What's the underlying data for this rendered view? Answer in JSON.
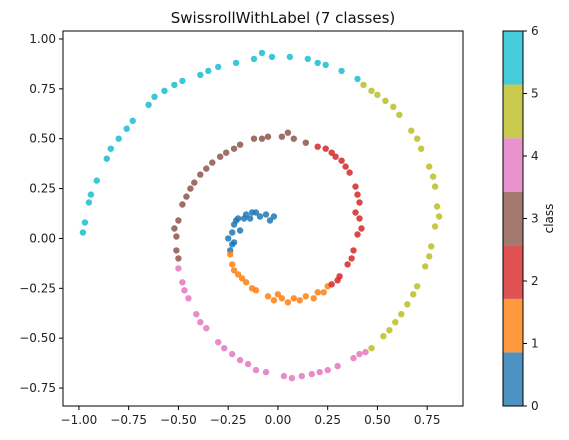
{
  "chart_data": {
    "type": "scatter",
    "title": "SwissrollWithLabel (7 classes)",
    "xlabel": "",
    "ylabel": "",
    "xlim": [
      -1.08,
      0.93
    ],
    "ylim": [
      -0.84,
      1.04
    ],
    "x_ticks": [
      -1.0,
      -0.75,
      -0.5,
      -0.25,
      0.0,
      0.25,
      0.5,
      0.75
    ],
    "x_tick_labels": [
      "−1.00",
      "−0.75",
      "−0.50",
      "−0.25",
      "0.00",
      "0.25",
      "0.50",
      "0.75"
    ],
    "y_ticks": [
      1.0,
      0.75,
      0.5,
      0.25,
      0.0,
      -0.25,
      -0.5,
      -0.75
    ],
    "y_tick_labels": [
      "1.00",
      "0.75",
      "0.50",
      "0.25",
      "0.00",
      "−0.25",
      "−0.50",
      "−0.75"
    ],
    "grid": false,
    "colorbar": {
      "label": "class",
      "ticks": [
        "0",
        "1",
        "2",
        "3",
        "4",
        "5",
        "6"
      ],
      "colors": [
        "#1f77b4",
        "#ff7f0e",
        "#d62728",
        "#8c564b",
        "#e377c2",
        "#bcbd22",
        "#17becf"
      ]
    },
    "series": [
      {
        "class": 0,
        "color": "#1f77b4",
        "points": [
          [
            -0.22,
            -0.02
          ],
          [
            -0.23,
            0.03
          ],
          [
            -0.22,
            0.07
          ],
          [
            -0.2,
            0.1
          ],
          [
            -0.16,
            0.12
          ],
          [
            -0.11,
            0.13
          ],
          [
            -0.06,
            0.12
          ],
          [
            -0.02,
            0.11
          ],
          [
            -0.24,
            -0.06
          ],
          [
            -0.21,
            0.09
          ],
          [
            -0.14,
            0.1
          ],
          [
            -0.09,
            0.11
          ],
          [
            -0.19,
            0.04
          ],
          [
            -0.13,
            0.13
          ],
          [
            -0.04,
            0.09
          ],
          [
            -0.17,
            0.1
          ],
          [
            -0.25,
            0.0
          ],
          [
            -0.23,
            -0.03
          ]
        ]
      },
      {
        "class": 1,
        "color": "#ff7f0e",
        "points": [
          [
            -0.24,
            -0.08
          ],
          [
            -0.23,
            -0.13
          ],
          [
            -0.2,
            -0.18
          ],
          [
            -0.16,
            -0.22
          ],
          [
            -0.11,
            -0.26
          ],
          [
            -0.05,
            -0.29
          ],
          [
            0.02,
            -0.3
          ],
          [
            0.08,
            -0.3
          ],
          [
            0.14,
            -0.29
          ],
          [
            0.2,
            -0.27
          ],
          [
            0.25,
            -0.24
          ],
          [
            -0.22,
            -0.16
          ],
          [
            -0.13,
            -0.25
          ],
          [
            -0.02,
            -0.31
          ],
          [
            0.05,
            -0.32
          ],
          [
            0.11,
            -0.31
          ],
          [
            0.18,
            -0.3
          ],
          [
            0.23,
            -0.27
          ],
          [
            -0.18,
            -0.2
          ],
          [
            0.0,
            -0.28
          ]
        ]
      },
      {
        "class": 2,
        "color": "#d62728",
        "points": [
          [
            0.27,
            -0.23
          ],
          [
            0.31,
            -0.19
          ],
          [
            0.35,
            -0.13
          ],
          [
            0.38,
            -0.06
          ],
          [
            0.4,
            0.02
          ],
          [
            0.41,
            0.1
          ],
          [
            0.41,
            0.18
          ],
          [
            0.39,
            0.26
          ],
          [
            0.36,
            0.33
          ],
          [
            0.32,
            0.39
          ],
          [
            0.27,
            0.43
          ],
          [
            0.2,
            0.46
          ],
          [
            0.37,
            -0.1
          ],
          [
            0.42,
            0.05
          ],
          [
            0.4,
            0.22
          ],
          [
            0.34,
            0.36
          ],
          [
            0.24,
            0.45
          ],
          [
            0.3,
            -0.21
          ],
          [
            0.39,
            0.13
          ],
          [
            0.29,
            0.41
          ]
        ]
      },
      {
        "class": 3,
        "color": "#8c564b",
        "points": [
          [
            0.14,
            0.48
          ],
          [
            0.08,
            0.5
          ],
          [
            0.02,
            0.51
          ],
          [
            -0.05,
            0.51
          ],
          [
            -0.12,
            0.5
          ],
          [
            -0.19,
            0.47
          ],
          [
            -0.26,
            0.43
          ],
          [
            -0.33,
            0.38
          ],
          [
            -0.39,
            0.32
          ],
          [
            -0.44,
            0.25
          ],
          [
            -0.48,
            0.17
          ],
          [
            -0.5,
            0.09
          ],
          [
            -0.51,
            0.01
          ],
          [
            -0.51,
            -0.06
          ],
          [
            -0.5,
            -0.1
          ],
          [
            -0.22,
            0.45
          ],
          [
            -0.36,
            0.35
          ],
          [
            -0.46,
            0.21
          ],
          [
            -0.52,
            0.05
          ],
          [
            0.05,
            0.53
          ],
          [
            -0.08,
            0.5
          ],
          [
            -0.42,
            0.28
          ],
          [
            -0.29,
            0.41
          ]
        ]
      },
      {
        "class": 4,
        "color": "#e377c2",
        "points": [
          [
            -0.5,
            -0.15
          ],
          [
            -0.48,
            -0.22
          ],
          [
            -0.45,
            -0.3
          ],
          [
            -0.41,
            -0.38
          ],
          [
            -0.36,
            -0.45
          ],
          [
            -0.3,
            -0.52
          ],
          [
            -0.23,
            -0.58
          ],
          [
            -0.15,
            -0.63
          ],
          [
            -0.06,
            -0.67
          ],
          [
            0.03,
            -0.69
          ],
          [
            0.12,
            -0.69
          ],
          [
            0.21,
            -0.67
          ],
          [
            0.3,
            -0.64
          ],
          [
            0.38,
            -0.6
          ],
          [
            0.44,
            -0.57
          ],
          [
            -0.47,
            -0.26
          ],
          [
            -0.39,
            -0.42
          ],
          [
            -0.27,
            -0.55
          ],
          [
            -0.11,
            -0.66
          ],
          [
            0.07,
            -0.7
          ],
          [
            0.25,
            -0.66
          ],
          [
            0.41,
            -0.58
          ],
          [
            -0.19,
            -0.61
          ],
          [
            0.17,
            -0.68
          ]
        ]
      },
      {
        "class": 5,
        "color": "#bcbd22",
        "points": [
          [
            0.47,
            -0.55
          ],
          [
            0.53,
            -0.49
          ],
          [
            0.59,
            -0.42
          ],
          [
            0.65,
            -0.33
          ],
          [
            0.7,
            -0.24
          ],
          [
            0.74,
            -0.14
          ],
          [
            0.77,
            -0.04
          ],
          [
            0.79,
            0.06
          ],
          [
            0.8,
            0.16
          ],
          [
            0.79,
            0.26
          ],
          [
            0.76,
            0.36
          ],
          [
            0.72,
            0.45
          ],
          [
            0.67,
            0.54
          ],
          [
            0.61,
            0.62
          ],
          [
            0.54,
            0.69
          ],
          [
            0.47,
            0.74
          ],
          [
            0.43,
            0.77
          ],
          [
            0.56,
            -0.46
          ],
          [
            0.68,
            -0.28
          ],
          [
            0.76,
            -0.09
          ],
          [
            0.81,
            0.11
          ],
          [
            0.78,
            0.31
          ],
          [
            0.7,
            0.5
          ],
          [
            0.58,
            0.66
          ],
          [
            0.5,
            0.72
          ],
          [
            0.62,
            -0.38
          ]
        ]
      },
      {
        "class": 6,
        "color": "#17becf",
        "points": [
          [
            0.4,
            0.8
          ],
          [
            0.32,
            0.84
          ],
          [
            0.24,
            0.87
          ],
          [
            0.15,
            0.9
          ],
          [
            0.06,
            0.91
          ],
          [
            -0.03,
            0.91
          ],
          [
            -0.12,
            0.9
          ],
          [
            -0.21,
            0.88
          ],
          [
            -0.3,
            0.86
          ],
          [
            -0.39,
            0.82
          ],
          [
            -0.48,
            0.79
          ],
          [
            -0.57,
            0.74
          ],
          [
            -0.65,
            0.67
          ],
          [
            -0.73,
            0.59
          ],
          [
            -0.8,
            0.5
          ],
          [
            -0.86,
            0.4
          ],
          [
            -0.91,
            0.29
          ],
          [
            -0.95,
            0.18
          ],
          [
            -0.97,
            0.08
          ],
          [
            -0.98,
            0.03
          ],
          [
            -0.08,
            0.93
          ],
          [
            -0.35,
            0.84
          ],
          [
            -0.62,
            0.71
          ],
          [
            -0.84,
            0.45
          ],
          [
            -0.94,
            0.22
          ],
          [
            0.2,
            0.88
          ],
          [
            -0.52,
            0.77
          ],
          [
            -0.76,
            0.55
          ]
        ]
      }
    ]
  }
}
